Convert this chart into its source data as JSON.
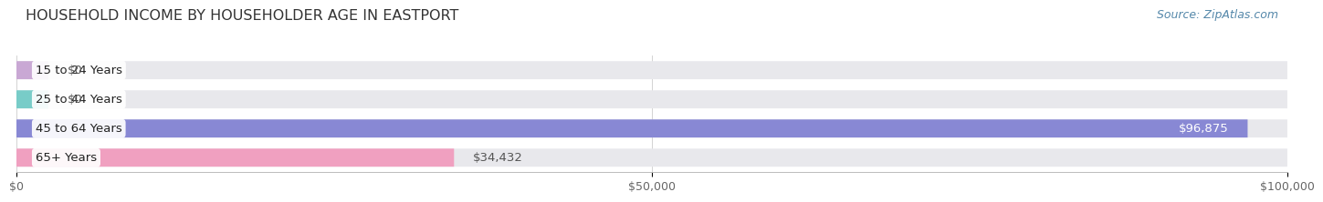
{
  "title": "HOUSEHOLD INCOME BY HOUSEHOLDER AGE IN EASTPORT",
  "source": "Source: ZipAtlas.com",
  "categories": [
    "15 to 24 Years",
    "25 to 44 Years",
    "45 to 64 Years",
    "65+ Years"
  ],
  "values": [
    0,
    0,
    96875,
    34432
  ],
  "bar_colors": [
    "#c9a8d4",
    "#78ccc8",
    "#8888d4",
    "#f0a0c0"
  ],
  "bar_bg_color": "#e8e8ec",
  "value_labels": [
    "$0",
    "$0",
    "$96,875",
    "$34,432"
  ],
  "value_inside": [
    false,
    false,
    true,
    false
  ],
  "xlabel_ticks": [
    0,
    50000,
    100000
  ],
  "xlabel_labels": [
    "$0",
    "$50,000",
    "$100,000"
  ],
  "xlim": [
    0,
    100000
  ],
  "background_color": "#ffffff",
  "title_fontsize": 11.5,
  "label_fontsize": 9.5,
  "tick_fontsize": 9,
  "source_fontsize": 9,
  "bar_height": 0.62,
  "bar_gap": 0.38
}
